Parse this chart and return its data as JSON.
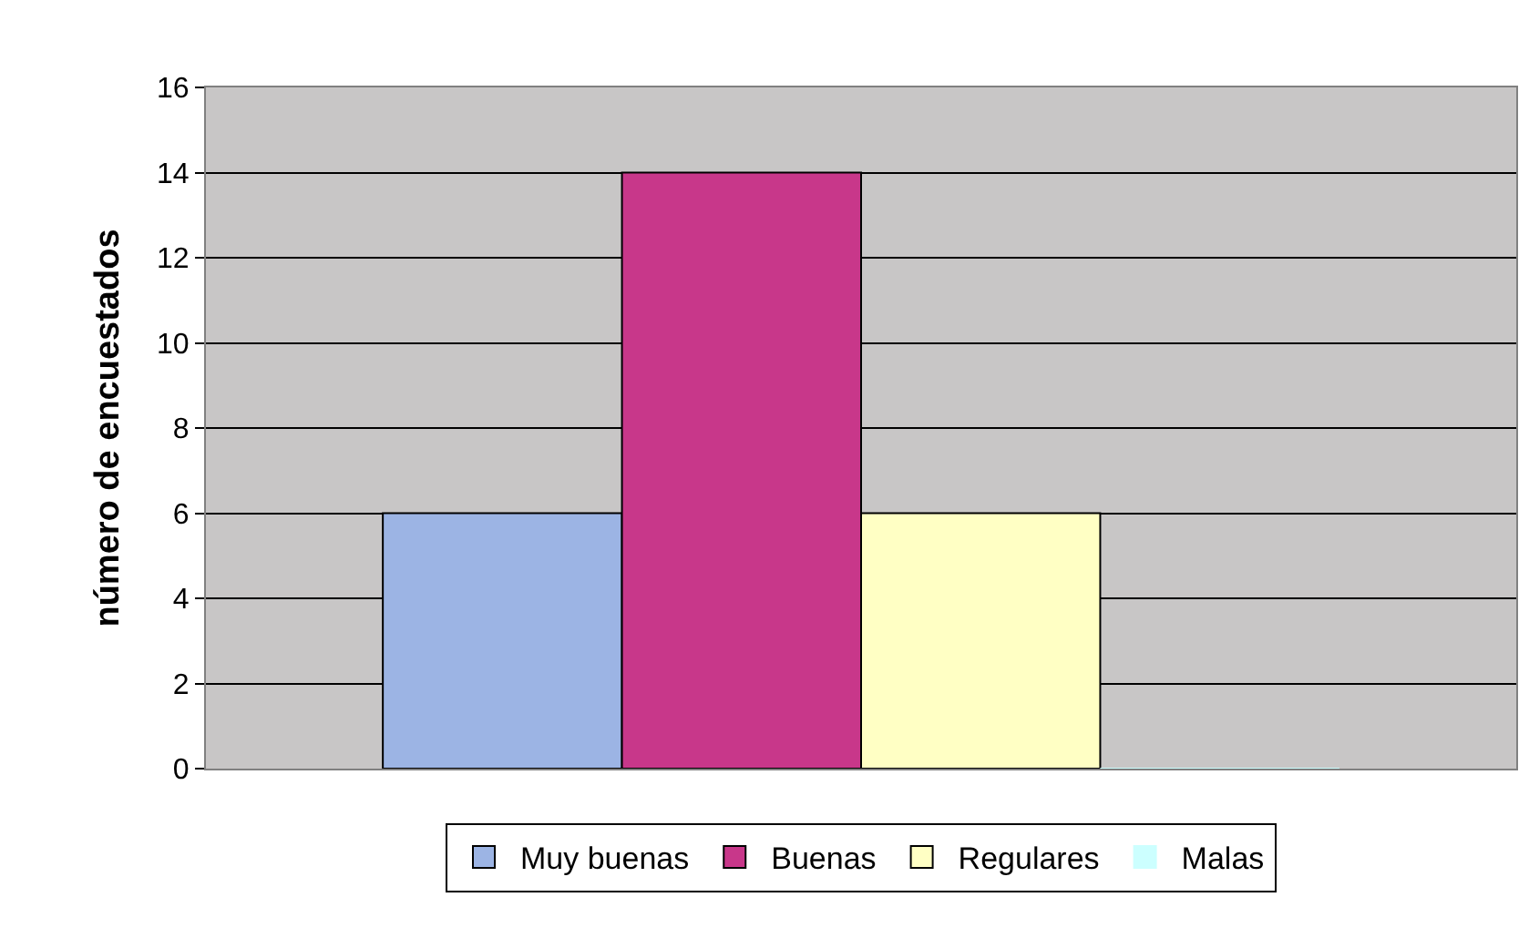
{
  "chart_data": {
    "type": "bar",
    "ylabel": "número de encuestados",
    "categories": [
      null
    ],
    "series": [
      {
        "name": "Muy buenas",
        "color": "#9cb4e4",
        "values": [
          6
        ]
      },
      {
        "name": "Buenas",
        "color": "#c8378a",
        "values": [
          14
        ]
      },
      {
        "name": "Regulares",
        "color": "#ffffc4",
        "values": [
          6
        ]
      },
      {
        "name": "Malas",
        "color": "#ccffff",
        "values": [
          0
        ]
      }
    ],
    "ylim": [
      0,
      16
    ],
    "yticks": [
      0,
      2,
      4,
      6,
      8,
      10,
      12,
      14,
      16
    ],
    "grid": "y",
    "legend": "bottom"
  }
}
